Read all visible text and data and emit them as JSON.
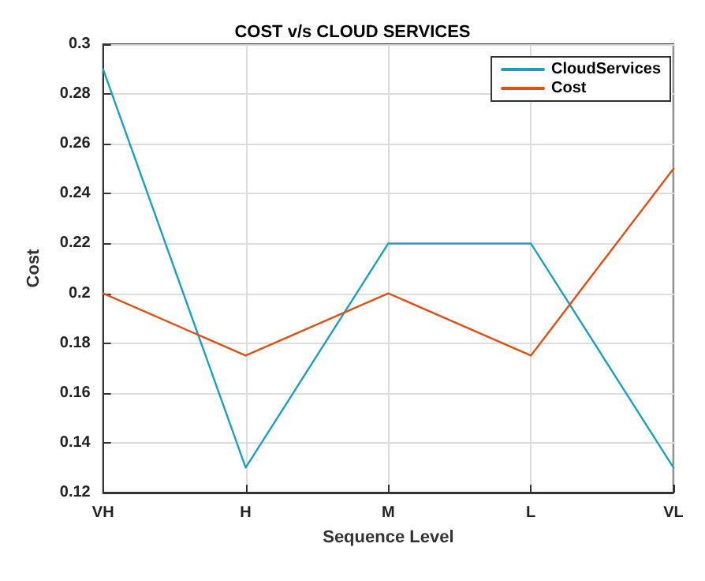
{
  "chart_data": {
    "type": "line",
    "title": "COST v/s CLOUD SERVICES",
    "xlabel": "Sequence Level",
    "ylabel": "Cost",
    "categories": [
      "VH",
      "H",
      "M",
      "L",
      "VL"
    ],
    "series": [
      {
        "name": "CloudServices",
        "color": "#1f9ec0",
        "values": [
          0.29,
          0.13,
          0.22,
          0.22,
          0.13
        ]
      },
      {
        "name": "Cost",
        "color": "#d95319",
        "values": [
          0.2,
          0.175,
          0.2,
          0.175,
          0.25
        ]
      }
    ],
    "ylim": [
      0.12,
      0.3
    ],
    "yticks": [
      0.12,
      0.14,
      0.16,
      0.18,
      0.2,
      0.22,
      0.24,
      0.26,
      0.28,
      0.3
    ],
    "grid": true,
    "legend": "top right",
    "marker": "none",
    "line_style": "solid"
  }
}
